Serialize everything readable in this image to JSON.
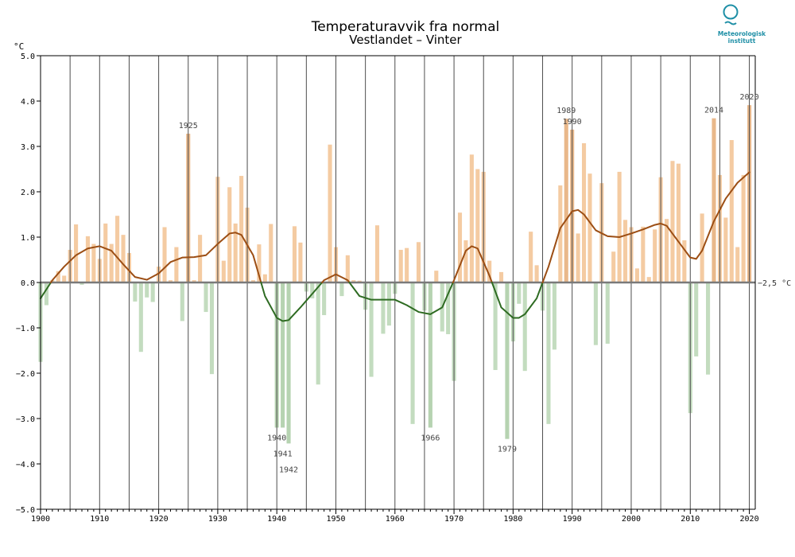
{
  "chart_data": {
    "type": "bar",
    "title": "Temperaturavvik fra normal",
    "subtitle": "Vestlandet – Vinter",
    "ylabel": "°C",
    "ylim": [
      -5.0,
      5.0
    ],
    "xlim": [
      1900,
      2021
    ],
    "y_ticks": [
      5.0,
      4.0,
      3.0,
      2.0,
      1.0,
      0.0,
      -1.0,
      -2.0,
      -3.0,
      -4.0,
      -5.0
    ],
    "y_tick_labels": [
      "5.0",
      "4.0",
      "3.0",
      "2.0",
      "1.0",
      "0.0",
      "−1.0",
      "−2.0",
      "−3.0",
      "−4.0",
      "−5.0"
    ],
    "x_ticks": [
      1900,
      1910,
      1920,
      1930,
      1940,
      1950,
      1960,
      1970,
      1980,
      1990,
      2000,
      2010,
      2020
    ],
    "x_tick_labels": [
      "1900",
      "1910",
      "1920",
      "1930",
      "1940",
      "1950",
      "1960",
      "1970",
      "1980",
      "1990",
      "2000",
      "2010",
      "2020"
    ],
    "reference_label": "−2,5 °C",
    "years": [
      1900,
      1901,
      1902,
      1903,
      1904,
      1905,
      1906,
      1907,
      1908,
      1909,
      1910,
      1911,
      1912,
      1913,
      1914,
      1915,
      1916,
      1917,
      1918,
      1919,
      1920,
      1921,
      1922,
      1923,
      1924,
      1925,
      1926,
      1927,
      1928,
      1929,
      1930,
      1931,
      1932,
      1933,
      1934,
      1935,
      1936,
      1937,
      1938,
      1939,
      1940,
      1941,
      1942,
      1943,
      1944,
      1945,
      1946,
      1947,
      1948,
      1949,
      1950,
      1951,
      1952,
      1953,
      1954,
      1955,
      1956,
      1957,
      1958,
      1959,
      1960,
      1961,
      1962,
      1963,
      1964,
      1965,
      1966,
      1967,
      1968,
      1969,
      1970,
      1971,
      1972,
      1973,
      1974,
      1975,
      1976,
      1977,
      1978,
      1979,
      1980,
      1981,
      1982,
      1983,
      1984,
      1985,
      1986,
      1987,
      1988,
      1989,
      1990,
      1991,
      1992,
      1993,
      1994,
      1995,
      1996,
      1997,
      1998,
      1999,
      2000,
      2001,
      2002,
      2003,
      2004,
      2005,
      2006,
      2007,
      2008,
      2009,
      2010,
      2011,
      2012,
      2013,
      2014,
      2015,
      2016,
      2017,
      2018,
      2019,
      2020
    ],
    "values": [
      -1.75,
      -0.5,
      0.05,
      0.25,
      0.15,
      0.72,
      1.28,
      -0.05,
      1.02,
      0.85,
      0.52,
      1.3,
      0.85,
      1.47,
      1.05,
      0.65,
      -0.42,
      -1.53,
      -0.33,
      -0.43,
      0.35,
      1.22,
      0.05,
      0.78,
      -0.85,
      3.28,
      0.05,
      1.05,
      -0.65,
      -2.02,
      2.33,
      0.48,
      2.1,
      1.3,
      2.35,
      1.65,
      0.05,
      0.84,
      0.18,
      1.29,
      -3.2,
      -3.2,
      -3.55,
      1.24,
      0.88,
      -0.2,
      -0.35,
      -2.25,
      -0.72,
      3.04,
      0.78,
      -0.3,
      0.6,
      0.05,
      0.04,
      -0.6,
      -2.08,
      1.26,
      -1.13,
      -0.95,
      -0.25,
      0.72,
      0.76,
      -3.12,
      0.89,
      -0.62,
      -3.2,
      0.26,
      -1.08,
      -1.14,
      -2.17,
      1.54,
      0.93,
      2.82,
      2.5,
      2.44,
      0.48,
      -1.93,
      0.23,
      -3.45,
      -1.3,
      -0.47,
      -1.95,
      1.12,
      0.38,
      -0.62,
      -3.12,
      -1.48,
      2.14,
      3.61,
      3.37,
      1.08,
      3.07,
      2.4,
      -1.38,
      2.19,
      -1.35,
      0.68,
      2.44,
      1.38,
      1.22,
      0.31,
      1.23,
      0.12,
      1.17,
      2.32,
      1.4,
      2.68,
      2.62,
      0.93,
      -2.88,
      -1.63,
      1.52,
      -2.03,
      3.62,
      2.37,
      1.43,
      3.14,
      0.78,
      2.37,
      3.91
    ],
    "smoothed": {
      "x": [
        1900,
        1902,
        1904,
        1906,
        1908,
        1910,
        1912,
        1914,
        1916,
        1918,
        1920,
        1922,
        1924,
        1926,
        1928,
        1930,
        1932,
        1933,
        1934,
        1936,
        1938,
        1940,
        1941,
        1942,
        1944,
        1946,
        1948,
        1950,
        1952,
        1954,
        1956,
        1958,
        1960,
        1962,
        1964,
        1966,
        1968,
        1970,
        1972,
        1973,
        1974,
        1976,
        1978,
        1980,
        1981,
        1982,
        1984,
        1986,
        1988,
        1990,
        1991,
        1992,
        1994,
        1996,
        1998,
        2000,
        2002,
        2004,
        2005,
        2006,
        2008,
        2010,
        2011,
        2012,
        2014,
        2016,
        2018,
        2020
      ],
      "y": [
        -0.35,
        0.05,
        0.35,
        0.6,
        0.75,
        0.8,
        0.7,
        0.4,
        0.12,
        0.06,
        0.2,
        0.45,
        0.55,
        0.56,
        0.6,
        0.85,
        1.08,
        1.1,
        1.05,
        0.6,
        -0.3,
        -0.78,
        -0.85,
        -0.83,
        -0.55,
        -0.25,
        0.05,
        0.18,
        0.05,
        -0.3,
        -0.38,
        -0.38,
        -0.38,
        -0.5,
        -0.65,
        -0.7,
        -0.55,
        0.05,
        0.7,
        0.8,
        0.75,
        0.15,
        -0.55,
        -0.78,
        -0.78,
        -0.7,
        -0.35,
        0.35,
        1.2,
        1.57,
        1.6,
        1.5,
        1.15,
        1.02,
        1.0,
        1.08,
        1.17,
        1.27,
        1.3,
        1.25,
        0.9,
        0.55,
        0.52,
        0.7,
        1.35,
        1.85,
        2.2,
        2.43
      ]
    },
    "annotations": [
      {
        "year": 1925,
        "label": "1925"
      },
      {
        "year": 1940,
        "label": "1940"
      },
      {
        "year": 1941,
        "label": "1941"
      },
      {
        "year": 1942,
        "label": "1942"
      },
      {
        "year": 1966,
        "label": "1966"
      },
      {
        "year": 1979,
        "label": "1979"
      },
      {
        "year": 1989,
        "label": "1989"
      },
      {
        "year": 1990,
        "label": "1990"
      },
      {
        "year": 2014,
        "label": "2014"
      },
      {
        "year": 2020,
        "label": "2020"
      }
    ],
    "colors": {
      "warm_bar": "#f4cba2",
      "warm_bar_highlight": "#e9b88a",
      "cold_bar": "#c3dcbf",
      "cold_bar_highlight": "#b6d3b1",
      "curve_warm": "#9c4e14",
      "curve_cold": "#2e6b22",
      "zero_line": "#7a7a7a",
      "grid": "#4d4d4d",
      "logo": "#1e8fa6"
    }
  },
  "logo": {
    "name": "Meteorologisk institutt",
    "line1": "Meteorologisk",
    "line2": "institutt"
  }
}
